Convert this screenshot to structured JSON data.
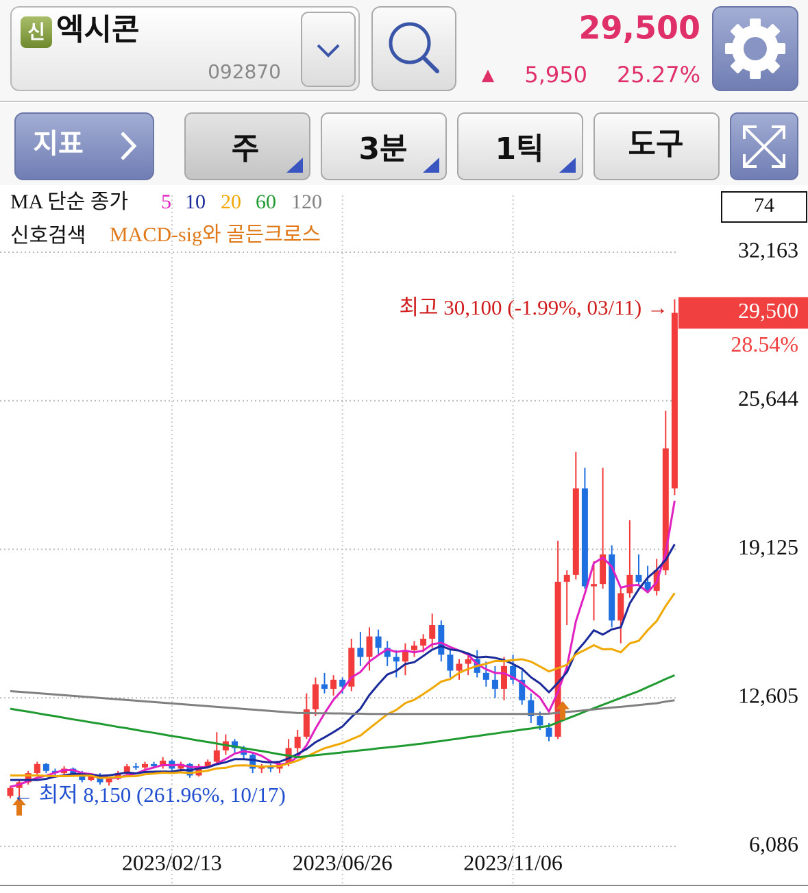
{
  "header": {
    "badge": "신",
    "name": "엑시콘",
    "code": "092870",
    "price": "29,500",
    "change_arrow": "▲",
    "change": "5,950",
    "change_rate": "25.27%"
  },
  "toolbar": {
    "indicator": "지표",
    "buttons": [
      "주",
      "3분",
      "1틱",
      "도구"
    ]
  },
  "chart_data": {
    "type": "candlestick",
    "ma_legend_title": "MA 단순 종가",
    "signal_label": "신호검색",
    "signal_name": "MACD-sig와 골든크로스",
    "scale_box": 74,
    "up_color": "#f23c3c",
    "down_color": "#1f6fe0",
    "grid": true,
    "ylim": [
      4432,
      34659
    ],
    "yticks": [
      {
        "value": 6086,
        "label": "6,086"
      },
      {
        "value": 12605,
        "label": "12,605"
      },
      {
        "value": 19125,
        "label": "19,125"
      },
      {
        "value": 25644,
        "label": "25,644"
      },
      {
        "value": 32163,
        "label": "32,163"
      }
    ],
    "last_price": {
      "value": 29500,
      "label": "29,500"
    },
    "last_price_change": "28.54%",
    "annotations": {
      "high": "최고 30,100 (-1.99%, 03/11) →",
      "low": "← 최저 8,150 (261.96%, 10/17)"
    },
    "categories": [
      null,
      null,
      null,
      null,
      null,
      null,
      null,
      null,
      null,
      null,
      null,
      null,
      null,
      null,
      null,
      null,
      null,
      null,
      "2023/02/13",
      null,
      null,
      null,
      null,
      null,
      null,
      null,
      null,
      null,
      null,
      null,
      null,
      null,
      null,
      null,
      null,
      null,
      null,
      "2023/06/26",
      null,
      null,
      null,
      null,
      null,
      null,
      null,
      null,
      null,
      null,
      null,
      null,
      null,
      null,
      null,
      null,
      null,
      null,
      "2023/11/06",
      null,
      null,
      null,
      null,
      null,
      null,
      null,
      null,
      null,
      null,
      null,
      null,
      null,
      null,
      null,
      null,
      null,
      null
    ],
    "open": [
      8300,
      8650,
      8900,
      9300,
      9700,
      9400,
      9300,
      9500,
      9300,
      9000,
      9200,
      8900,
      9050,
      9300,
      9600,
      9550,
      9700,
      9600,
      9850,
      9500,
      9700,
      9200,
      9600,
      9800,
      10300,
      10700,
      10400,
      10100,
      9500,
      9600,
      9500,
      9700,
      10400,
      10900,
      12100,
      13200,
      13000,
      13400,
      13100,
      14800,
      14400,
      15300,
      14800,
      14400,
      14200,
      14700,
      14900,
      15200,
      15800,
      14500,
      13800,
      14100,
      14300,
      13700,
      13400,
      13000,
      14000,
      13400,
      12500,
      11800,
      11300,
      10900,
      17700,
      18000,
      21800,
      17500,
      17600,
      18900,
      16000,
      17200,
      18000,
      17700,
      17300,
      18200,
      21800
    ],
    "high": [
      8750,
      9000,
      9400,
      9800,
      9750,
      9500,
      9600,
      9550,
      9400,
      9300,
      9300,
      9100,
      9400,
      9700,
      9750,
      9800,
      9800,
      10000,
      9900,
      9800,
      9750,
      9700,
      9900,
      11100,
      11000,
      10800,
      10500,
      10200,
      9700,
      9700,
      9800,
      10800,
      11200,
      12800,
      13500,
      13700,
      13600,
      13500,
      15200,
      15500,
      15700,
      15600,
      15100,
      14700,
      15000,
      15100,
      15400,
      16300,
      16000,
      14700,
      14300,
      14600,
      14700,
      14200,
      14000,
      14400,
      14500,
      13800,
      12800,
      12000,
      11500,
      19500,
      18200,
      23400,
      22700,
      18600,
      22700,
      19300,
      17500,
      20400,
      18900,
      18400,
      18700,
      25200,
      30100
    ],
    "low": [
      8200,
      8150,
      8800,
      9200,
      9300,
      9100,
      9200,
      9200,
      8900,
      8950,
      8800,
      8750,
      9000,
      9200,
      9450,
      9400,
      9500,
      9500,
      9400,
      9300,
      9100,
      9150,
      9500,
      9750,
      10100,
      10200,
      9900,
      9300,
      9300,
      9350,
      9300,
      9600,
      10200,
      10800,
      11800,
      12800,
      12700,
      12800,
      12900,
      14000,
      13800,
      14500,
      14000,
      13500,
      13600,
      14400,
      14600,
      14800,
      14200,
      13500,
      13400,
      13600,
      13500,
      13100,
      12600,
      12500,
      13200,
      12300,
      11500,
      11200,
      10700,
      10800,
      15800,
      17800,
      17400,
      16000,
      17400,
      15700,
      15000,
      17000,
      17500,
      17200,
      17100,
      18000,
      21500
    ],
    "close": [
      8650,
      8900,
      9300,
      9700,
      9400,
      9300,
      9500,
      9300,
      9000,
      9200,
      8900,
      9050,
      9300,
      9600,
      9550,
      9700,
      9600,
      9850,
      9500,
      9700,
      9200,
      9600,
      9800,
      10300,
      10700,
      10400,
      10100,
      9500,
      9600,
      9500,
      9700,
      10400,
      10900,
      12100,
      13200,
      13000,
      13400,
      13100,
      14800,
      14400,
      15300,
      14800,
      14400,
      14200,
      14700,
      14900,
      15200,
      15800,
      14500,
      13800,
      14100,
      14300,
      13700,
      13400,
      13000,
      14000,
      13400,
      12500,
      11800,
      11400,
      10900,
      17700,
      18000,
      21800,
      17500,
      17600,
      18900,
      16000,
      17200,
      18000,
      17700,
      17300,
      18200,
      23550,
      29500
    ],
    "series": [
      {
        "name": "5",
        "color": "#e020c0",
        "values": [
          8700,
          8800,
          8950,
          9100,
          9190,
          9320,
          9440,
          9440,
          9300,
          9260,
          9180,
          9090,
          9090,
          9210,
          9280,
          9440,
          9550,
          9660,
          9640,
          9670,
          9570,
          9570,
          9560,
          9720,
          9920,
          10160,
          10260,
          10200,
          10060,
          9820,
          9680,
          9740,
          10020,
          10520,
          11260,
          11920,
          12520,
          12960,
          13500,
          13740,
          14200,
          14480,
          14740,
          14620,
          14680,
          14600,
          14680,
          14960,
          15020,
          14840,
          14680,
          14500,
          14080,
          13860,
          13700,
          13680,
          13500,
          13260,
          12940,
          12620,
          12000,
          12860,
          13960,
          15960,
          17180,
          18520,
          18760,
          18360,
          17440,
          17540,
          17560,
          17240,
          17680,
          18950,
          21250
        ]
      },
      {
        "name": "10",
        "color": "#1a2a9a",
        "values": [
          9000,
          9000,
          9000,
          9000,
          9050,
          9150,
          9200,
          9270,
          9250,
          9230,
          9185,
          9205,
          9265,
          9325,
          9290,
          9350,
          9365,
          9375,
          9365,
          9440,
          9425,
          9505,
          9555,
          9690,
          9780,
          9915,
          9915,
          9885,
          9810,
          9770,
          9800,
          9950,
          10140,
          10360,
          10660,
          10870,
          11100,
          11350,
          11760,
          12130,
          12730,
          13200,
          13630,
          13790,
          14090,
          14170,
          14440,
          14720,
          14880,
          14730,
          14680,
          14550,
          14380,
          14410,
          14360,
          14260,
          14090,
          13880,
          13510,
          13240,
          12850,
          13270,
          13730,
          14610,
          15060,
          15570,
          15380,
          15610,
          15700,
          16750,
          17370,
          17880,
          18220,
          18655,
          19345
        ]
      },
      {
        "name": "20",
        "color": "#f0a800",
        "values": [
          9200,
          9200,
          9200,
          9200,
          9180,
          9170,
          9170,
          9180,
          9190,
          9190,
          9090,
          9100,
          9130,
          9160,
          9170,
          9250,
          9283,
          9323,
          9308,
          9335,
          9305,
          9355,
          9410,
          9508,
          9535,
          9633,
          9640,
          9630,
          9588,
          9605,
          9613,
          9728,
          9848,
          10025,
          10220,
          10393,
          10508,
          10618,
          10785,
          10950,
          11265,
          11575,
          11885,
          12075,
          12375,
          12520,
          12770,
          13035,
          13320,
          13430,
          13705,
          13875,
          14005,
          14100,
          14225,
          14215,
          14265,
          14300,
          14195,
          13985,
          13765,
          13910,
          14055,
          14510,
          14710,
          14915,
          14735,
          14745,
          14605,
          14995,
          15110,
          15575,
          15975,
          16633,
          17203
        ]
      },
      {
        "name": "60",
        "color": "#1f9a30",
        "values": [
          12130,
          12060,
          12000,
          11930,
          11860,
          11800,
          11730,
          11660,
          11600,
          11530,
          11470,
          11400,
          11330,
          11270,
          11200,
          11130,
          11070,
          11000,
          10930,
          10870,
          10800,
          10730,
          10670,
          10600,
          10530,
          10470,
          10400,
          10330,
          10270,
          10200,
          10130,
          10070,
          10000,
          10040,
          10090,
          10130,
          10170,
          10210,
          10260,
          10300,
          10340,
          10390,
          10430,
          10470,
          10510,
          10560,
          10600,
          10660,
          10710,
          10770,
          10820,
          10880,
          10930,
          10990,
          11040,
          11100,
          11150,
          11210,
          11260,
          11320,
          11375,
          11530,
          11690,
          11840,
          12000,
          12150,
          12300,
          12450,
          12600,
          12750,
          12900,
          13080,
          13250,
          13430,
          13600
        ]
      },
      {
        "name": "120",
        "color": "#808080",
        "values": [
          12900,
          12870,
          12840,
          12810,
          12780,
          12750,
          12720,
          12690,
          12660,
          12630,
          12600,
          12570,
          12540,
          12510,
          12480,
          12450,
          12420,
          12390,
          12360,
          12330,
          12300,
          12270,
          12240,
          12210,
          12180,
          12150,
          12120,
          12090,
          12060,
          12030,
          12000,
          11970,
          11940,
          11940,
          11930,
          11930,
          11920,
          11920,
          11910,
          11910,
          11900,
          11900,
          11900,
          11900,
          11900,
          11900,
          11900,
          11900,
          11900,
          11900,
          11900,
          11900,
          11900,
          11900,
          11900,
          11900,
          11900,
          11900,
          11900,
          11900,
          11910,
          11950,
          11990,
          12020,
          12060,
          12100,
          12140,
          12180,
          12210,
          12250,
          12290,
          12330,
          12370,
          12440,
          12500
        ]
      }
    ]
  }
}
